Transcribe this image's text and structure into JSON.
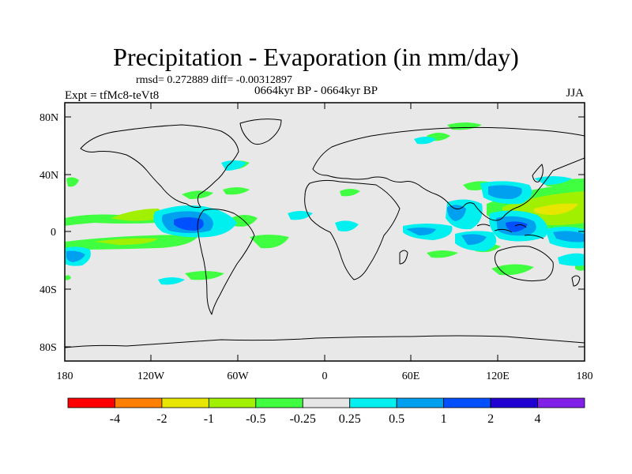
{
  "header": {
    "title": "Precipitation - Evaporation (in mm/day)",
    "stats": "rmsd= 0.272889 diff= -0.00312897",
    "period": "0664kyr BP - 0664kyr BP",
    "experiment": "Expt = tfMc8-teVt8",
    "season": "JJA"
  },
  "map": {
    "projection": "cylindrical equidistant",
    "lon_range": [
      -180,
      180
    ],
    "lat_range": [
      -90,
      90
    ],
    "background_color": "#e8e8e8",
    "lat_tick_labels": [
      "80N",
      "40N",
      "0",
      "40S",
      "80S"
    ],
    "lon_tick_labels": [
      "180",
      "120W",
      "60W",
      "0",
      "60E",
      "120E",
      "180"
    ]
  },
  "colorbar": {
    "colors": [
      "#ff0000",
      "#ff8000",
      "#e6e600",
      "#a0f000",
      "#40ff40",
      "#e6e6e6",
      "#00f0f0",
      "#00a0f0",
      "#0050ff",
      "#2000d0",
      "#8020e8"
    ],
    "labels": [
      "-4",
      "-2",
      "-1",
      "-0.5",
      "-0.25",
      "0.25",
      "0.5",
      "1",
      "2",
      "4"
    ]
  }
}
